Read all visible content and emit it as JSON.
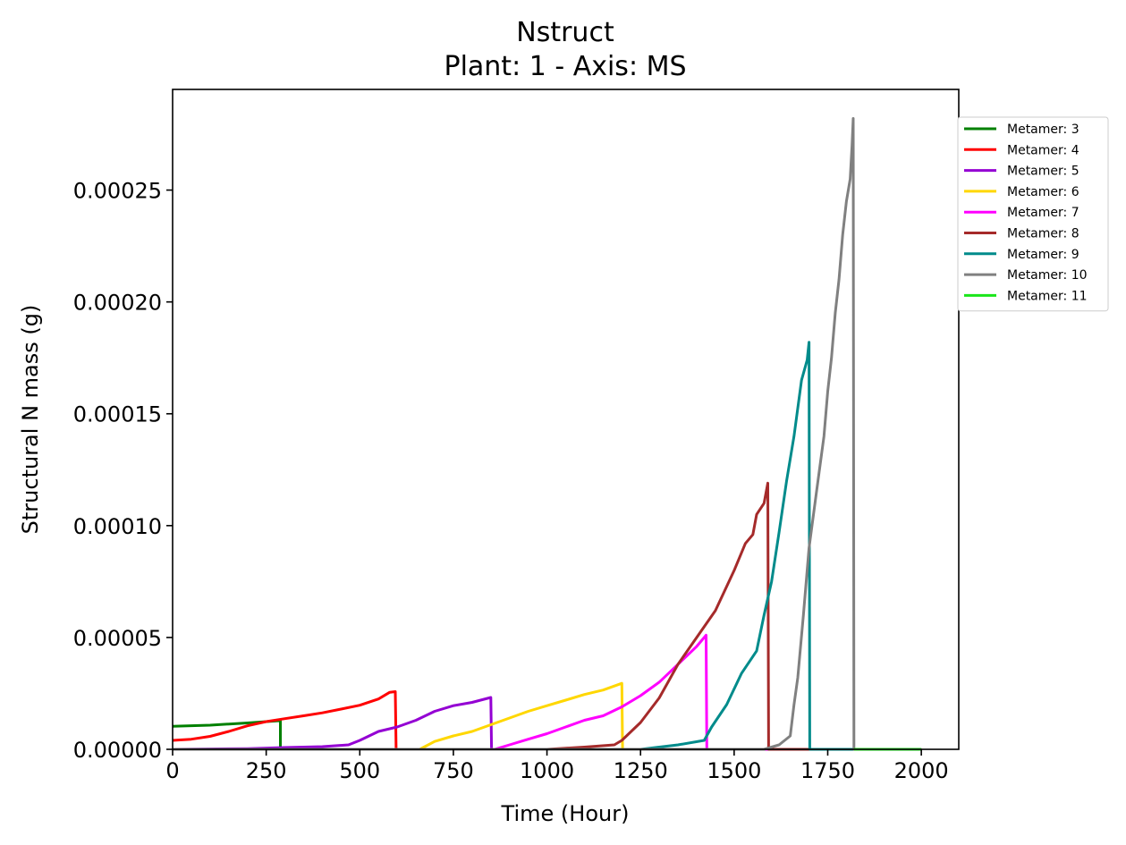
{
  "chart_data": {
    "type": "line",
    "title": "Nstruct",
    "subtitle": "Plant: 1 - Axis: MS",
    "xlabel": "Time (Hour)",
    "ylabel": "Structural N mass (g)",
    "xlim": [
      0,
      2100
    ],
    "ylim": [
      0,
      0.000295
    ],
    "xticks": [
      0,
      250,
      500,
      750,
      1000,
      1250,
      1500,
      1750,
      2000
    ],
    "xtick_labels": [
      "0",
      "250",
      "500",
      "750",
      "1000",
      "1250",
      "1500",
      "1750",
      "2000"
    ],
    "yticks": [
      0,
      5e-05,
      0.0001,
      0.00015,
      0.0002,
      0.00025
    ],
    "ytick_labels": [
      "0.00000",
      "0.00005",
      "0.00010",
      "0.00015",
      "0.00020",
      "0.00025"
    ],
    "grid": false,
    "legend_position": "outside-top-right",
    "series": [
      {
        "name": "Metamer: 3",
        "color": "#008000",
        "x": [
          0,
          100,
          200,
          285,
          288,
          288,
          2000
        ],
        "y": [
          1.03e-05,
          1.08e-05,
          1.18e-05,
          1.28e-05,
          1.28e-05,
          0,
          0
        ]
      },
      {
        "name": "Metamer: 4",
        "color": "#ff0000",
        "x": [
          0,
          50,
          100,
          150,
          200,
          250,
          300,
          350,
          400,
          450,
          500,
          550,
          580,
          595,
          597,
          2000
        ],
        "y": [
          4e-06,
          4.5e-06,
          5.8e-06,
          8e-06,
          1.05e-05,
          1.24e-05,
          1.37e-05,
          1.5e-05,
          1.63e-05,
          1.8e-05,
          1.97e-05,
          2.25e-05,
          2.55e-05,
          2.58e-05,
          0,
          0
        ]
      },
      {
        "name": "Metamer: 5",
        "color": "#9400d3",
        "x": [
          0,
          200,
          300,
          400,
          470,
          500,
          550,
          600,
          650,
          700,
          750,
          800,
          850,
          852,
          2000
        ],
        "y": [
          0,
          3e-07,
          8e-07,
          1.2e-06,
          2e-06,
          4e-06,
          8e-06,
          1e-05,
          1.3e-05,
          1.7e-05,
          1.95e-05,
          2.1e-05,
          2.32e-05,
          0,
          0
        ]
      },
      {
        "name": "Metamer: 6",
        "color": "#ffd700",
        "x": [
          0,
          660,
          700,
          750,
          800,
          850,
          900,
          950,
          1000,
          1050,
          1100,
          1150,
          1200,
          1202,
          2000
        ],
        "y": [
          0,
          0,
          3.5e-06,
          6e-06,
          8e-06,
          1.1e-05,
          1.4e-05,
          1.7e-05,
          1.95e-05,
          2.2e-05,
          2.45e-05,
          2.65e-05,
          2.95e-05,
          0,
          0
        ]
      },
      {
        "name": "Metamer: 7",
        "color": "#ff00ff",
        "x": [
          0,
          860,
          900,
          950,
          1000,
          1050,
          1100,
          1150,
          1200,
          1250,
          1300,
          1350,
          1400,
          1425,
          1427,
          2000
        ],
        "y": [
          0,
          0,
          2e-06,
          4.5e-06,
          7e-06,
          1e-05,
          1.3e-05,
          1.5e-05,
          1.9e-05,
          2.4e-05,
          3e-05,
          3.8e-05,
          4.6e-05,
          5.1e-05,
          0,
          0
        ]
      },
      {
        "name": "Metamer: 8",
        "color": "#a52a2a",
        "x": [
          0,
          1000,
          1100,
          1180,
          1200,
          1250,
          1300,
          1350,
          1400,
          1450,
          1500,
          1530,
          1550,
          1560,
          1580,
          1590,
          1592,
          2000
        ],
        "y": [
          0,
          0,
          1e-06,
          2e-06,
          4e-06,
          1.2e-05,
          2.3e-05,
          3.8e-05,
          5e-05,
          6.2e-05,
          8e-05,
          9.2e-05,
          9.6e-05,
          0.000105,
          0.00011,
          0.000119,
          0,
          0
        ]
      },
      {
        "name": "Metamer: 9",
        "color": "#008b8b",
        "x": [
          0,
          1250,
          1300,
          1350,
          1420,
          1440,
          1480,
          1520,
          1560,
          1580,
          1600,
          1620,
          1640,
          1660,
          1680,
          1695,
          1700,
          1702,
          2000
        ],
        "y": [
          0,
          0,
          1e-06,
          2e-06,
          4e-06,
          1e-05,
          2e-05,
          3.4e-05,
          4.4e-05,
          6e-05,
          7.5e-05,
          9.7e-05,
          0.00012,
          0.00014,
          0.000165,
          0.000174,
          0.000182,
          0,
          0
        ]
      },
      {
        "name": "Metamer: 10",
        "color": "#808080",
        "x": [
          0,
          1580,
          1620,
          1650,
          1660,
          1670,
          1685,
          1700,
          1720,
          1740,
          1750,
          1760,
          1770,
          1780,
          1790,
          1800,
          1810,
          1815,
          1818,
          1820,
          2000
        ],
        "y": [
          0,
          0,
          2e-06,
          6e-06,
          2e-05,
          3.2e-05,
          6e-05,
          9e-05,
          0.000115,
          0.00014,
          0.00016,
          0.000175,
          0.000195,
          0.00021,
          0.00023,
          0.000245,
          0.000255,
          0.00027,
          0.000282,
          0,
          0
        ]
      },
      {
        "name": "Metamer: 11",
        "color": "#19e619",
        "x": [
          1820,
          2000
        ],
        "y": [
          0,
          0
        ]
      }
    ]
  }
}
